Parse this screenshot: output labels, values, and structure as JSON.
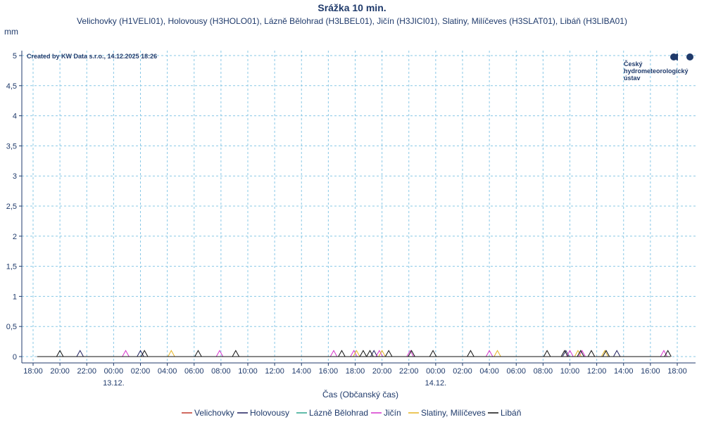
{
  "chart_data": {
    "type": "line",
    "title": "Srážka 10 min.",
    "subtitle": "Velichovky (H1VELI01), Holovousy (H3HOLO01), Lázně Bělohrad (H3LBEL01), Jičín (H3JICI01), Slatiny, Milíčeves (H3SLAT01), Libáň (H3LIBA01)",
    "ylabel": "mm",
    "xlabel": "Čas (Občanský čas)",
    "credit": "Created by KW Data s.r.o., 14.12.2025 18:26",
    "logo_text": [
      "Český",
      "hydrometeorologický",
      "ústav"
    ],
    "ylim": [
      0,
      5
    ],
    "yticks": [
      "0",
      "0,5",
      "1",
      "1,5",
      "2",
      "2,5",
      "3",
      "3,5",
      "4",
      "4,5",
      "5"
    ],
    "xlim": [
      -0.5,
      47.8
    ],
    "xticks": [
      {
        "h": 0,
        "label": "18:00"
      },
      {
        "h": 2,
        "label": "20:00"
      },
      {
        "h": 4,
        "label": "22:00"
      },
      {
        "h": 6,
        "label": "00:00",
        "date": "13.12."
      },
      {
        "h": 8,
        "label": "02:00"
      },
      {
        "h": 10,
        "label": "04:00"
      },
      {
        "h": 12,
        "label": "06:00"
      },
      {
        "h": 14,
        "label": "08:00"
      },
      {
        "h": 16,
        "label": "10:00"
      },
      {
        "h": 18,
        "label": "12:00"
      },
      {
        "h": 20,
        "label": "14:00"
      },
      {
        "h": 22,
        "label": "16:00"
      },
      {
        "h": 24,
        "label": "18:00"
      },
      {
        "h": 26,
        "label": "20:00"
      },
      {
        "h": 28,
        "label": "22:00"
      },
      {
        "h": 30,
        "label": "00:00",
        "date": "14.12."
      },
      {
        "h": 32,
        "label": "02:00"
      },
      {
        "h": 34,
        "label": "04:00"
      },
      {
        "h": 36,
        "label": "06:00"
      },
      {
        "h": 38,
        "label": "08:00"
      },
      {
        "h": 40,
        "label": "10:00"
      },
      {
        "h": 42,
        "label": "12:00"
      },
      {
        "h": 44,
        "label": "14:00"
      },
      {
        "h": 46,
        "label": "16:00"
      },
      {
        "h": 48,
        "label": "18:00"
      }
    ],
    "grid": true,
    "legend_position": "bottom",
    "x_start_h": 0.3,
    "x_end_h": 47.5,
    "series": [
      {
        "name": "Velichovky",
        "color": "#c0392b",
        "spikes_h": []
      },
      {
        "name": "Holovousy",
        "color": "#1f1f5f",
        "spikes_h": [
          3.5,
          8.0,
          25.4,
          39.7,
          43.5
        ]
      },
      {
        "name": "Lázně Bělohrad",
        "color": "#2ca58d",
        "spikes_h": []
      },
      {
        "name": "Jičín",
        "color": "#d633cc",
        "spikes_h": [
          6.9,
          13.9,
          22.4,
          23.9,
          25.8,
          28.1,
          34.0,
          40.0,
          40.9,
          47.0
        ]
      },
      {
        "name": "Slatiny, Milíčeves",
        "color": "#e6b422",
        "spikes_h": [
          10.3,
          24.1,
          26.0,
          34.6,
          40.6,
          42.6
        ]
      },
      {
        "name": "Libáň",
        "color": "#111111",
        "spikes_h": [
          2.0,
          8.3,
          12.3,
          15.1,
          23.0,
          24.6,
          25.1,
          26.5,
          28.2,
          29.8,
          32.6,
          38.3,
          39.6,
          40.8,
          41.6,
          42.7,
          47.3
        ]
      }
    ],
    "spike_value": 0.1
  }
}
